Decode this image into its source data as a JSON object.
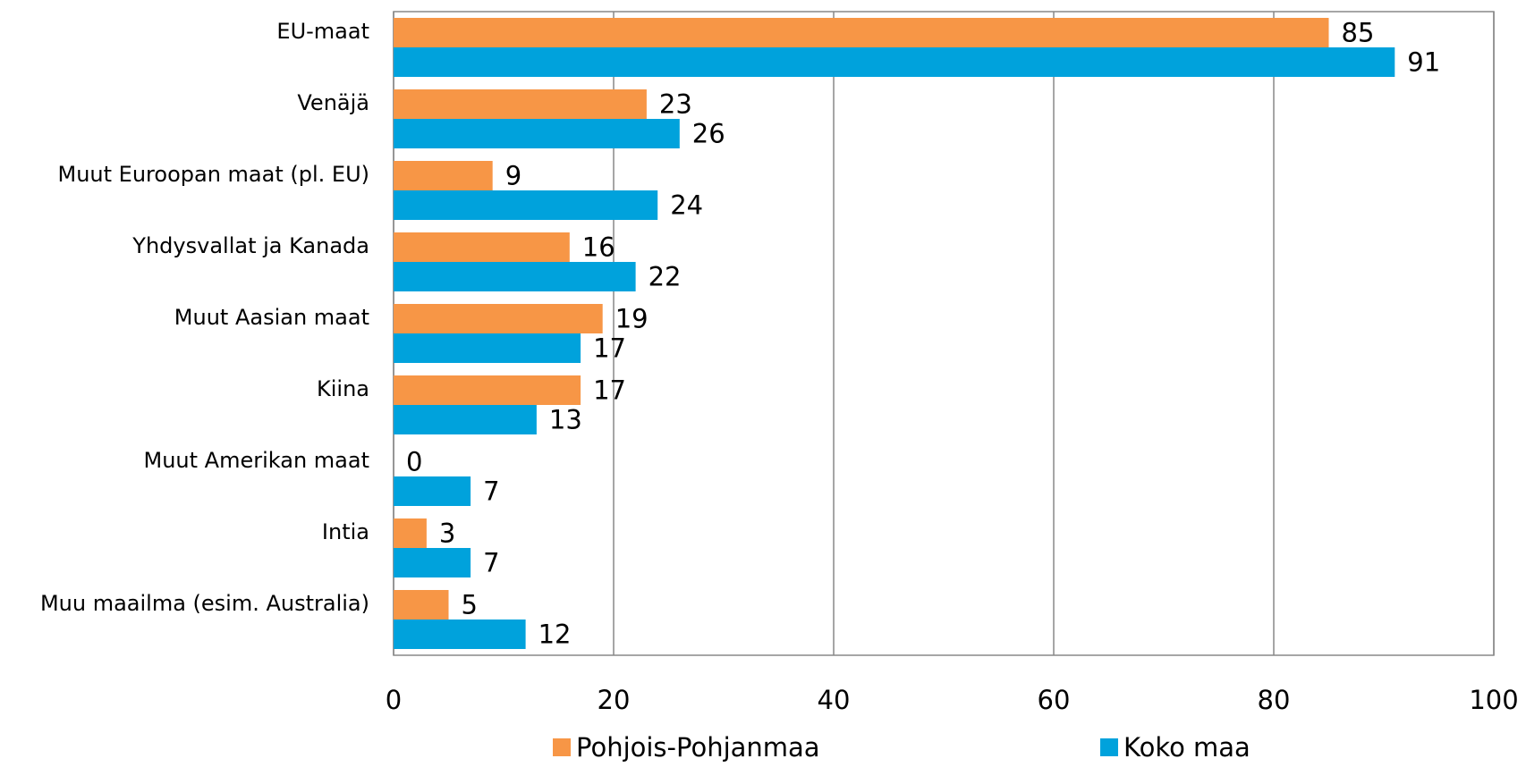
{
  "chart_data": {
    "type": "barh",
    "categories": [
      "EU-maat",
      "Venäjä",
      "Muut Euroopan maat (pl. EU)",
      "Yhdysvallat ja Kanada",
      "Muut Aasian maat",
      "Kiina",
      "Muut Amerikan maat",
      "Intia",
      "Muu maailma (esim. Australia)"
    ],
    "series": [
      {
        "name": "Pohjois-Pohjanmaa",
        "color": "#f79646",
        "values": [
          85,
          23,
          9,
          16,
          19,
          17,
          0,
          3,
          5
        ]
      },
      {
        "name": "Koko maa",
        "color": "#00a2dc",
        "values": [
          91,
          26,
          24,
          22,
          17,
          13,
          7,
          7,
          12
        ]
      }
    ],
    "xlim": [
      0,
      100
    ],
    "xticks": [
      0,
      20,
      40,
      60,
      80,
      100
    ],
    "grid": true,
    "legend": "bottom"
  }
}
